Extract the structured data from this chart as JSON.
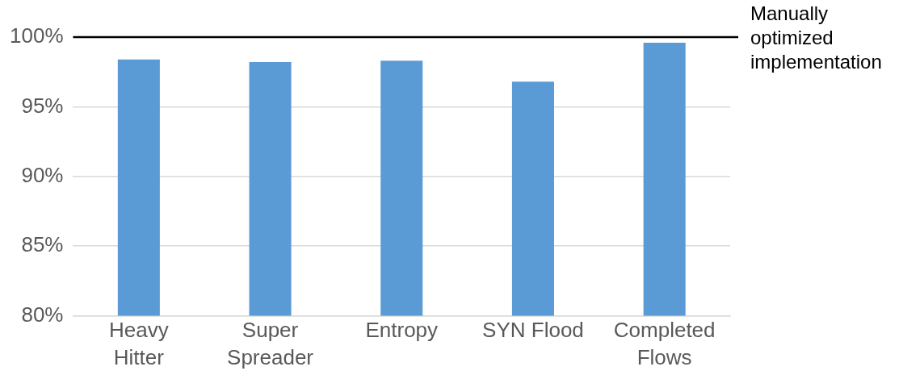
{
  "chart_data": {
    "type": "bar",
    "categories": [
      "Heavy Hitter",
      "Super Spreader",
      "Entropy",
      "SYN Flood",
      "Completed Flows"
    ],
    "values": [
      98.4,
      98.2,
      98.3,
      96.8,
      99.6
    ],
    "color": "#5b9bd5",
    "ylim": [
      80,
      100
    ],
    "yticks": [
      {
        "value": 80,
        "label": "80%"
      },
      {
        "value": 85,
        "label": "85%"
      },
      {
        "value": 90,
        "label": "90%"
      },
      {
        "value": 95,
        "label": "95%"
      },
      {
        "value": 100,
        "label": "100%"
      }
    ],
    "grid": "y",
    "ref_lines": [
      {
        "axis": "y",
        "value": 100,
        "label": "Manually optimized implementation",
        "color": "#000000"
      }
    ]
  }
}
